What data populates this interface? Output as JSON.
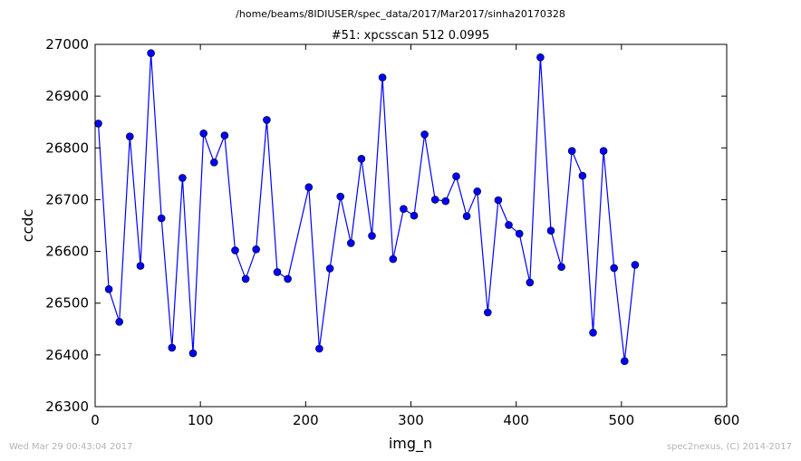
{
  "header": {
    "path": "/home/beams/8IDIUSER/spec_data/2017/Mar2017/sinha20170328"
  },
  "footer": {
    "timestamp": "Wed Mar 29 00:43:04 2017",
    "credit": "spec2nexus, (C) 2014-2017"
  },
  "chart_data": {
    "type": "line",
    "title": "#51: xpcsscan 512 0.0995",
    "xlabel": "img_n",
    "ylabel": "ccdc",
    "xlim": [
      0,
      600
    ],
    "ylim": [
      26300,
      27000
    ],
    "xticks": [
      0,
      100,
      200,
      300,
      400,
      500,
      600
    ],
    "yticks": [
      26300,
      26400,
      26500,
      26600,
      26700,
      26800,
      26900,
      27000
    ],
    "grid": false,
    "legend": "none",
    "series": [
      {
        "color": "#0000ff",
        "marker": "circle",
        "x": [
          3,
          13,
          23,
          33,
          43,
          53,
          63,
          73,
          83,
          93,
          103,
          113,
          123,
          133,
          143,
          153,
          163,
          173,
          183,
          203,
          213,
          223,
          233,
          243,
          253,
          263,
          273,
          283,
          293,
          303,
          313,
          323,
          333,
          343,
          353,
          363,
          373,
          383,
          393,
          403,
          413,
          423,
          433,
          443,
          453,
          463,
          473,
          483,
          493,
          503,
          513
        ],
        "y": [
          26847,
          26527,
          26464,
          26822,
          26572,
          26983,
          26664,
          26414,
          26742,
          26403,
          26828,
          26772,
          26824,
          26602,
          26547,
          26604,
          26854,
          26560,
          26547,
          26724,
          26412,
          26567,
          26706,
          26616,
          26779,
          26630,
          26936,
          26585,
          26682,
          26669,
          26826,
          26700,
          26697,
          26745,
          26668,
          26716,
          26482,
          26699,
          26651,
          26634,
          26540,
          26975,
          26640,
          26570,
          26794,
          26746,
          26443,
          26794,
          26568,
          26388,
          26574
        ]
      }
    ]
  }
}
